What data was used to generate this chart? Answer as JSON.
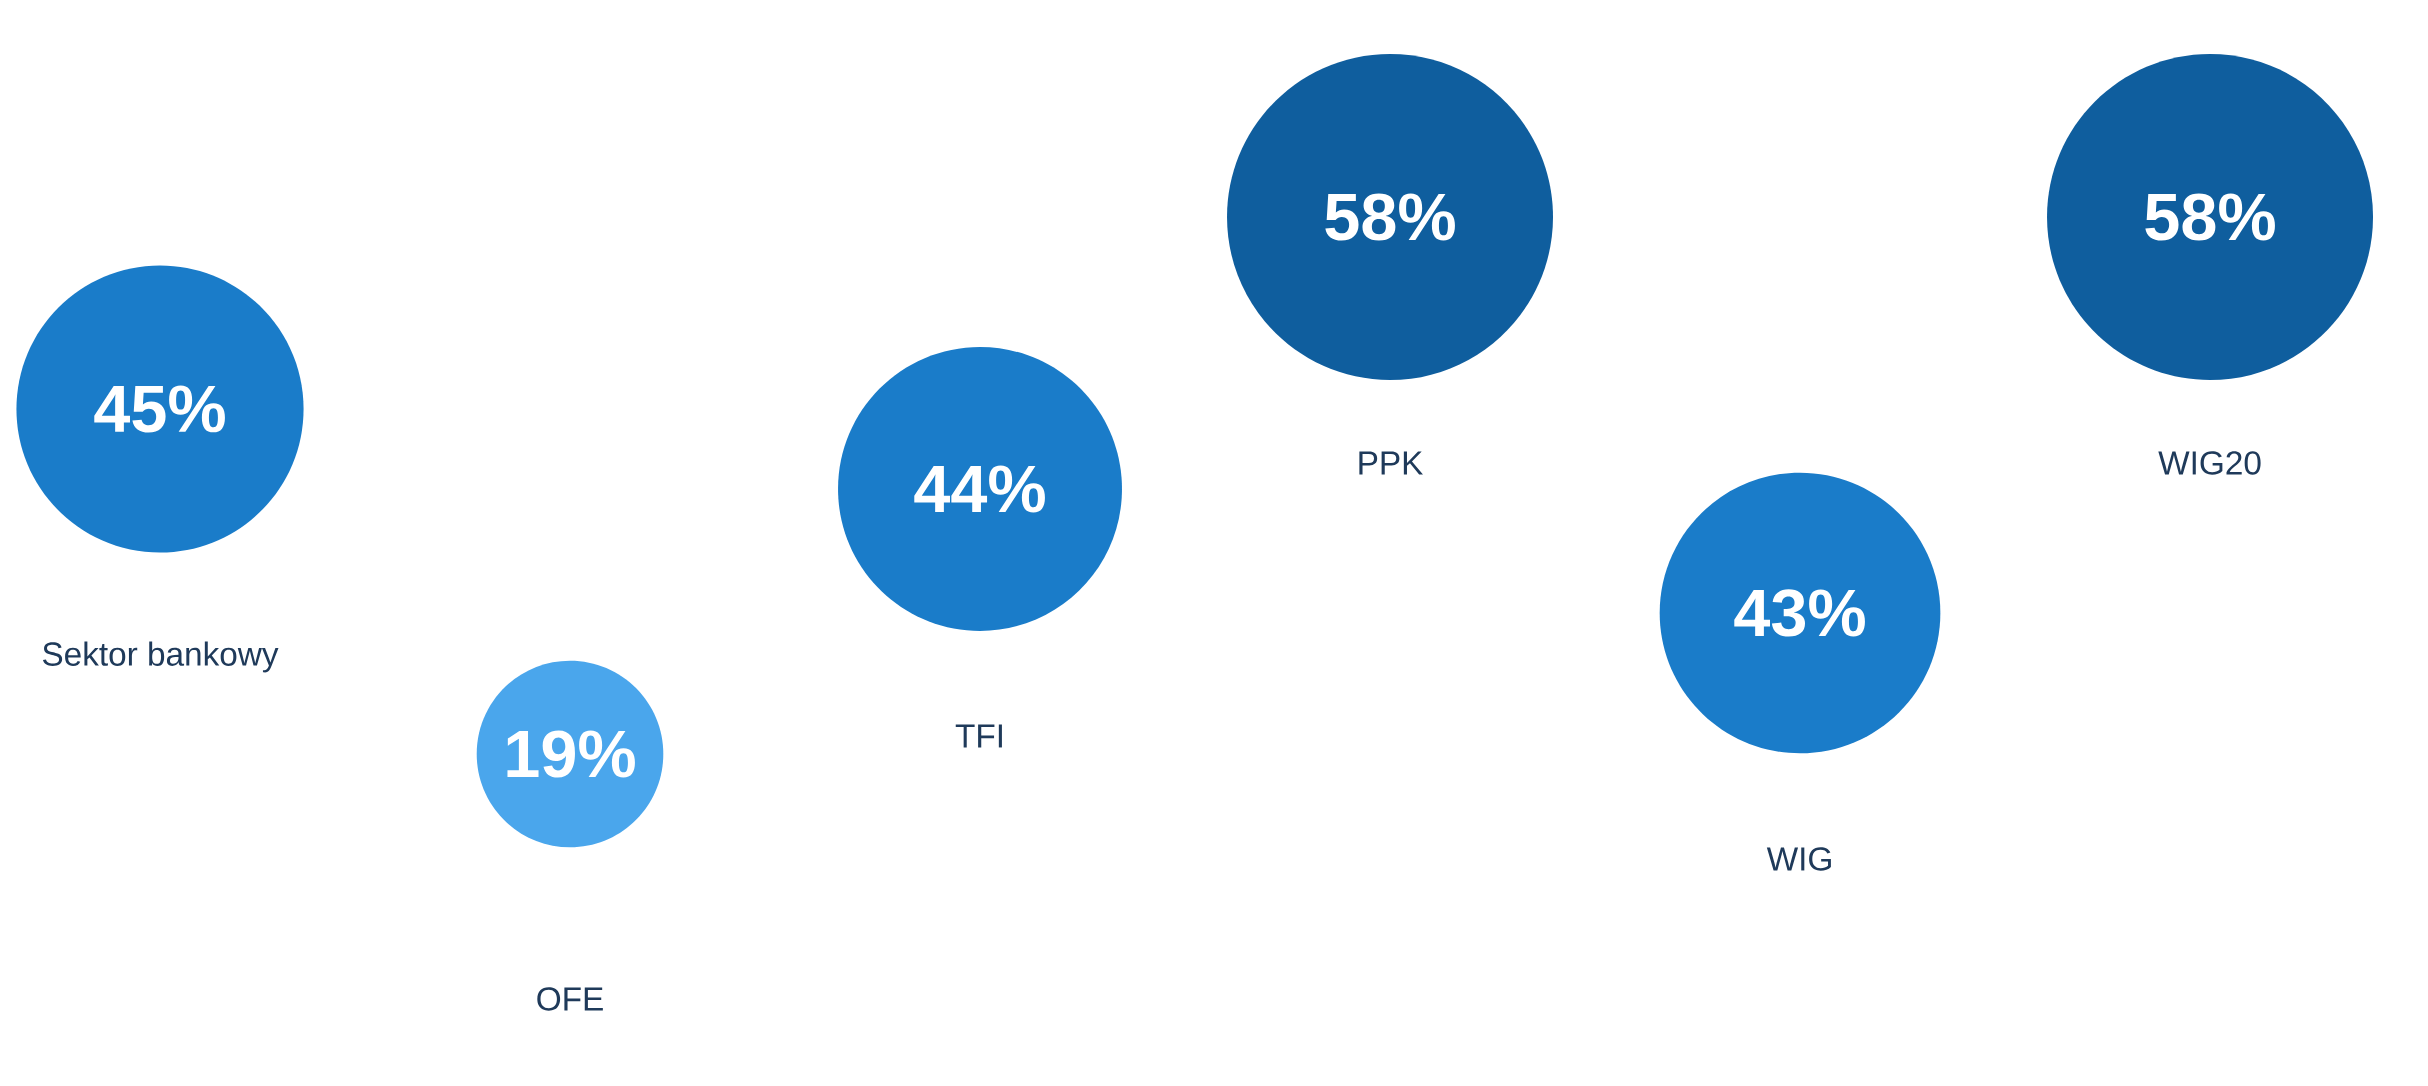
{
  "chart_data": {
    "type": "other",
    "categories": [
      "Sektor bankowy",
      "OFE",
      "TFI",
      "PPK",
      "WIG",
      "WIG20"
    ],
    "values": [
      45,
      19,
      44,
      58,
      43,
      58
    ],
    "value_labels": [
      "45%",
      "19%",
      "44%",
      "58%",
      "43%",
      "58%"
    ],
    "colors": [
      "#1a7cc9",
      "#4aa6ec",
      "#1a7cc9",
      "#0f5e9e",
      "#1a7cc9",
      "#0f5e9e"
    ]
  }
}
